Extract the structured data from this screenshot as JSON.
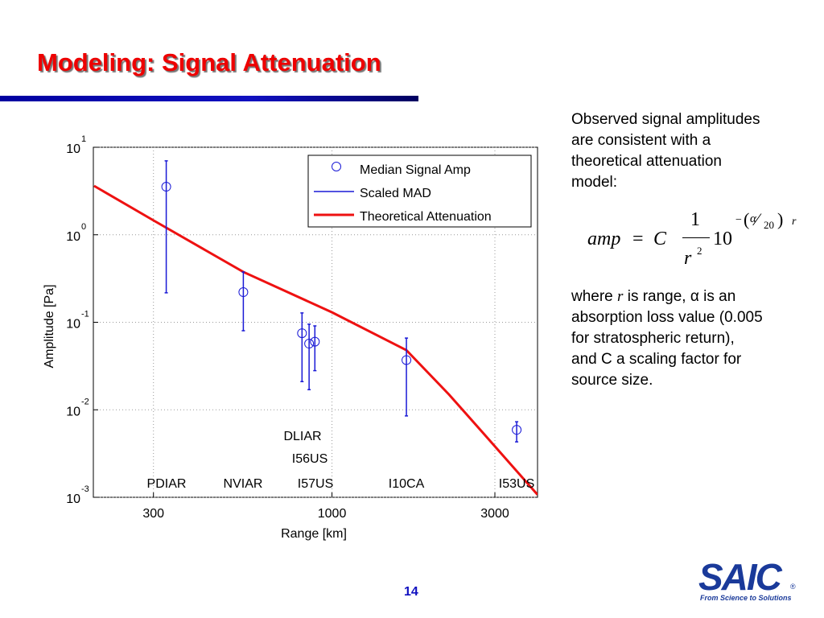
{
  "header": {
    "title": "Modeling: Signal Attenuation"
  },
  "chart_data": {
    "type": "scatter",
    "xlabel": "Range [km]",
    "ylabel": "Amplitude [Pa]",
    "xscale": "log",
    "yscale": "log",
    "grid": true,
    "legend": "upper right",
    "xlim": [
      200,
      4000
    ],
    "ylim": [
      0.001,
      10
    ],
    "xticks": [
      300,
      1000,
      3000
    ],
    "yticks": [
      {
        "value": 10,
        "label": "10",
        "sup": "1"
      },
      {
        "value": 1,
        "label": "10",
        "sup": "0"
      },
      {
        "value": 0.1,
        "label": "10",
        "sup": "-1"
      },
      {
        "value": 0.01,
        "label": "10",
        "sup": "-2"
      },
      {
        "value": 0.001,
        "label": "10",
        "sup": "-3"
      }
    ],
    "series": [
      {
        "name": "Median Signal Amp",
        "color": "#1a1ad6",
        "x": [
          327,
          550,
          817,
          857,
          891,
          1652,
          3475
        ],
        "values": [
          3.54,
          0.221,
          0.075,
          0.057,
          0.06,
          0.037,
          0.0059
        ]
      },
      {
        "name": "Scaled MAD",
        "color": "#1a1ad6",
        "lower": [
          0.217,
          0.08,
          0.021,
          0.017,
          0.028,
          0.0085,
          0.0043
        ],
        "upper": [
          7.0,
          0.376,
          0.128,
          0.095,
          0.091,
          0.066,
          0.0073
        ]
      },
      {
        "name": "Theoretical Attenuation",
        "color": "#ee1111",
        "x": [
          201,
          300,
          550,
          1000,
          1652,
          2200,
          2775,
          4000
        ],
        "values": [
          3.62,
          1.46,
          0.376,
          0.13,
          0.048,
          0.015,
          0.0054,
          0.00107
        ]
      }
    ],
    "annotations": [
      "DLIAR",
      "I56US",
      "PDIAR",
      "NVIAR",
      "I57US",
      "I10CA",
      "I53US"
    ]
  },
  "body": {
    "intro": [
      "Observed signal amplitudes",
      "are consistent with a",
      "theoretical attenuation",
      "model:"
    ],
    "equation": {
      "lhs": "amp",
      "eq": "=",
      "c": "C",
      "num": "1",
      "den": "r",
      "den_exp": "2",
      "base": "10",
      "minus": "−",
      "alpha": "α",
      "twenty": "20",
      "r": "r"
    },
    "where": {
      "first": [
        "where ",
        "r",
        " is range, α is an"
      ],
      "rest": [
        "absorption loss value (0.005",
        "for stratospheric return),",
        "and C a scaling factor for",
        "source size."
      ]
    }
  },
  "footer": {
    "page": "14",
    "logo": "SAIC",
    "reg": "®",
    "tagline": "From Science to Solutions"
  }
}
